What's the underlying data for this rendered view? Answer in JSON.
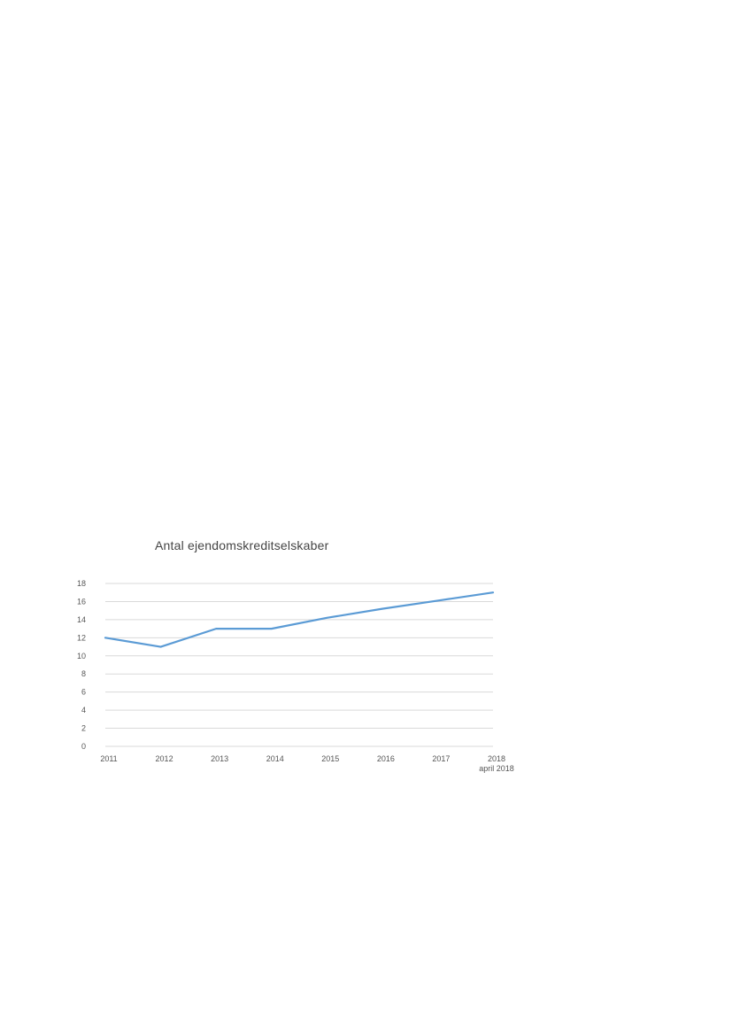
{
  "chart_data": {
    "type": "line",
    "title": "Antal ejendomskreditselskaber",
    "xlabel": "",
    "ylabel": "",
    "categories": [
      "2011",
      "2012",
      "2013",
      "2014",
      "2015",
      "2016",
      "2017",
      "2018"
    ],
    "category_sublabels": [
      "",
      "",
      "",
      "",
      "",
      "",
      "",
      "april 2018"
    ],
    "x_ticks": [
      "2011",
      "2012",
      "2013",
      "2014",
      "2015",
      "2016",
      "2017",
      "2018"
    ],
    "series": [
      {
        "values": [
          12,
          11,
          13,
          13,
          14.2,
          15.2,
          16.1,
          17
        ]
      }
    ],
    "ylim": [
      0,
      18
    ],
    "y_ticks": [
      0,
      2,
      4,
      6,
      8,
      10,
      12,
      14,
      16,
      18
    ],
    "grid": true,
    "legend": "none",
    "colors": {
      "line": "#5b9bd5",
      "grid": "#d9d9d9",
      "text": "#555555"
    }
  }
}
